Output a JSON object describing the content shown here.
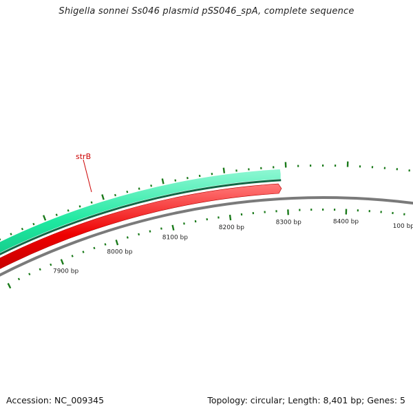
{
  "title": "Shigella sonnei Ss046 plasmid pSS046_spA, complete sequence",
  "footer": {
    "accession": "Accession: NC_009345",
    "summary": "Topology: circular; Length: 8,401 bp; Genes: 5"
  },
  "plasmid": {
    "length_bp": 8401,
    "visible_range_bp": [
      7820,
      230
    ],
    "bp_labels": [
      "7900 bp",
      "8000 bp",
      "8100 bp",
      "8200 bp",
      "8300 bp",
      "8400 bp",
      "100 bp"
    ],
    "bp_label_positions": [
      7900,
      8000,
      8100,
      8200,
      8300,
      8400,
      100
    ]
  },
  "features": [
    {
      "name": "strB",
      "label": "strB",
      "strand": "forward",
      "color": "#1ee8a0",
      "end_bp": 8291
    },
    {
      "name": "",
      "label": "",
      "strand": "forward",
      "color": "#ee0000",
      "end_bp": 8291
    }
  ],
  "colors": {
    "backbone": "#888888",
    "tick": "#1a7a1a",
    "strB": "#1ee8a0",
    "red_feature": "#ee0000",
    "label_line": "#cc0000"
  }
}
